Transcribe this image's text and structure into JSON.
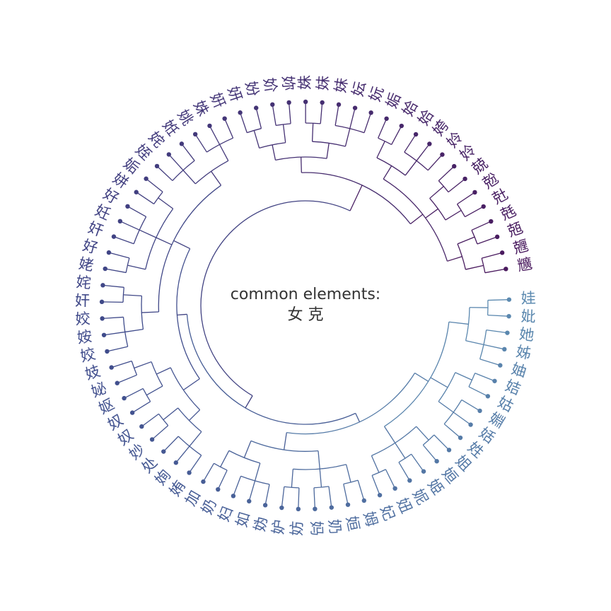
{
  "center": {
    "line1": "common elements:",
    "line2": "女 克"
  },
  "colors": {
    "start": "#4a1a5e",
    "mid": "#3f4a8a",
    "end": "#5c8ab0",
    "text": "#333333"
  },
  "leaves": [
    "娃",
    "妣",
    "她",
    "姊",
    "妯",
    "姞",
    "姑",
    "婣",
    "姡",
    "姓",
    "姐",
    "姮",
    "姫",
    "妮",
    "妞",
    "妃",
    "姆",
    "姮",
    "奶",
    "妈",
    "妨",
    "妒",
    "妫",
    "如",
    "妇",
    "奶",
    "加",
    "姷",
    "姰",
    "处",
    "妙",
    "奴",
    "奴",
    "妪",
    "妼",
    "妓",
    "姣",
    "姲",
    "姣",
    "奸",
    "姹",
    "姥",
    "好",
    "奸",
    "妊",
    "好",
    "姘",
    "姤",
    "姪",
    "姹",
    "姙",
    "姚",
    "姝",
    "姸",
    "妍",
    "妢",
    "妎",
    "妳",
    "姝",
    "妹",
    "妹",
    "妘",
    "妧",
    "姤",
    "姶",
    "姶",
    "姱",
    "姈",
    "姈",
    "兢",
    "兝",
    "兙",
    "兞",
    "兡",
    "兣",
    "兤"
  ]
}
